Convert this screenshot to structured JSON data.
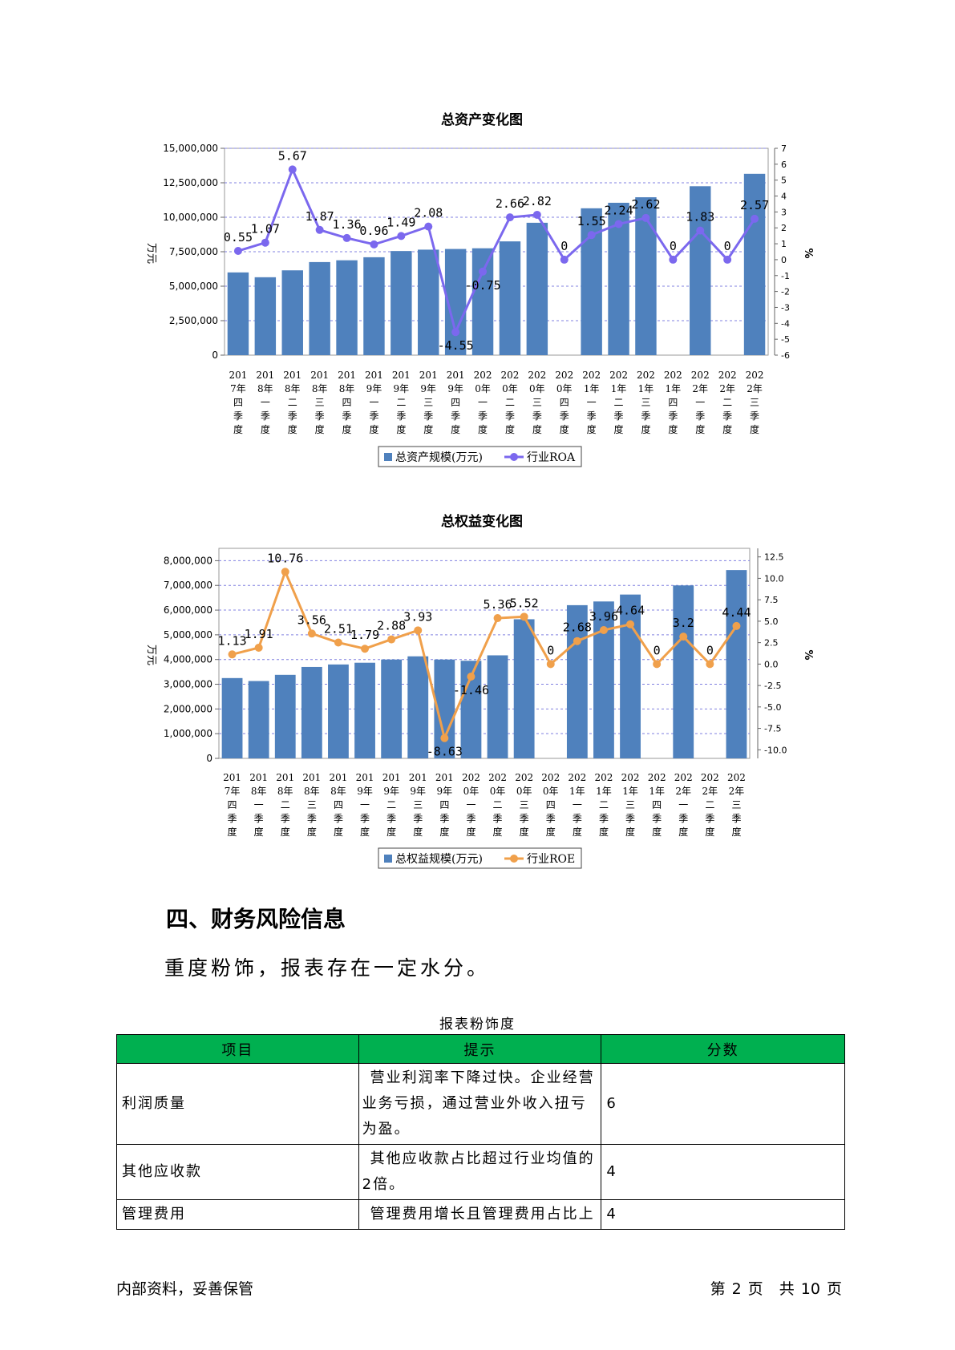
{
  "charts": {
    "assets": {
      "title": "总资产变化图",
      "ylabel_left": "万元",
      "ylabel_right": "%",
      "left_ticks": [
        "0",
        "2,500,000",
        "5,000,000",
        "7,500,000",
        "10,000,000",
        "12,500,000",
        "15,000,000"
      ],
      "right_ticks": [
        "-6",
        "-5",
        "-4",
        "-3",
        "-2",
        "-1",
        "0",
        "1",
        "2",
        "3",
        "4",
        "5",
        "6",
        "7"
      ],
      "legend_bar": "总资产规模(万元)",
      "legend_line": "行业ROA"
    },
    "equity": {
      "title": "总权益变化图",
      "ylabel_left": "万元",
      "ylabel_right": "%",
      "left_ticks": [
        "0",
        "1,000,000",
        "2,000,000",
        "3,000,000",
        "4,000,000",
        "5,000,000",
        "6,000,000",
        "7,000,000",
        "8,000,000"
      ],
      "right_ticks": [
        "-10.0",
        "-7.5",
        "-5.0",
        "-2.5",
        "0.0",
        "2.5",
        "5.0",
        "7.5",
        "10.0",
        "12.5"
      ],
      "legend_bar": "总权益规模(万元)",
      "legend_line": "行业ROE"
    }
  },
  "chart_data": [
    {
      "type": "bar",
      "title": "总资产变化图",
      "ylabel": "万元",
      "y2label": "%",
      "ylim": [
        0,
        15000000
      ],
      "y2lim": [
        -6,
        7
      ],
      "grid": true,
      "legend": "bottom",
      "categories": [
        [
          "201",
          "7年",
          "四",
          "季",
          "度"
        ],
        [
          "201",
          "8年",
          "一",
          "季",
          "度"
        ],
        [
          "201",
          "8年",
          "二",
          "季",
          "度"
        ],
        [
          "201",
          "8年",
          "三",
          "季",
          "度"
        ],
        [
          "201",
          "8年",
          "四",
          "季",
          "度"
        ],
        [
          "201",
          "9年",
          "一",
          "季",
          "度"
        ],
        [
          "201",
          "9年",
          "二",
          "季",
          "度"
        ],
        [
          "201",
          "9年",
          "三",
          "季",
          "度"
        ],
        [
          "201",
          "9年",
          "四",
          "季",
          "度"
        ],
        [
          "202",
          "0年",
          "一",
          "季",
          "度"
        ],
        [
          "202",
          "0年",
          "二",
          "季",
          "度"
        ],
        [
          "202",
          "0年",
          "三",
          "季",
          "度"
        ],
        [
          "202",
          "0年",
          "四",
          "季",
          "度"
        ],
        [
          "202",
          "1年",
          "一",
          "季",
          "度"
        ],
        [
          "202",
          "1年",
          "二",
          "季",
          "度"
        ],
        [
          "202",
          "1年",
          "三",
          "季",
          "度"
        ],
        [
          "202",
          "1年",
          "四",
          "季",
          "度"
        ],
        [
          "202",
          "2年",
          "一",
          "季",
          "度"
        ],
        [
          "202",
          "2年",
          "二",
          "季",
          "度"
        ],
        [
          "202",
          "2年",
          "三",
          "季",
          "度"
        ]
      ],
      "series": [
        {
          "name": "总资产规模(万元)",
          "kind": "bar",
          "axis": "left",
          "color": "#4f81bd",
          "values": [
            6000000,
            5650000,
            6150000,
            6750000,
            6880000,
            7100000,
            7550000,
            7650000,
            7700000,
            7750000,
            8250000,
            9600000,
            0,
            10650000,
            11050000,
            11450000,
            0,
            12250000,
            0,
            13150000
          ]
        },
        {
          "name": "行业ROA",
          "kind": "line",
          "axis": "right",
          "color": "#7b68ee",
          "values": [
            0.55,
            1.07,
            5.67,
            1.87,
            1.36,
            0.96,
            1.49,
            2.08,
            -4.55,
            -0.75,
            2.66,
            2.82,
            0,
            1.55,
            2.24,
            2.62,
            0,
            1.83,
            0,
            2.57
          ],
          "labels": [
            "0.55",
            "1.07",
            "5.67",
            "1.87",
            "1.36",
            "0.96",
            "1.49",
            "2.08",
            "-4.55",
            "-0.75",
            "2.66",
            "2.82",
            "0",
            "1.55",
            "2.24",
            "2.62",
            "0",
            "1.83",
            "0",
            "2.57"
          ]
        }
      ]
    },
    {
      "type": "bar",
      "title": "总权益变化图",
      "ylabel": "万元",
      "y2label": "%",
      "ylim": [
        0,
        8500000
      ],
      "y2lim": [
        -11,
        13.5
      ],
      "grid": true,
      "legend": "bottom",
      "categories": [
        [
          "201",
          "7年",
          "四",
          "季",
          "度"
        ],
        [
          "201",
          "8年",
          "一",
          "季",
          "度"
        ],
        [
          "201",
          "8年",
          "二",
          "季",
          "度"
        ],
        [
          "201",
          "8年",
          "三",
          "季",
          "度"
        ],
        [
          "201",
          "8年",
          "四",
          "季",
          "度"
        ],
        [
          "201",
          "9年",
          "一",
          "季",
          "度"
        ],
        [
          "201",
          "9年",
          "二",
          "季",
          "度"
        ],
        [
          "201",
          "9年",
          "三",
          "季",
          "度"
        ],
        [
          "201",
          "9年",
          "四",
          "季",
          "度"
        ],
        [
          "202",
          "0年",
          "一",
          "季",
          "度"
        ],
        [
          "202",
          "0年",
          "二",
          "季",
          "度"
        ],
        [
          "202",
          "0年",
          "三",
          "季",
          "度"
        ],
        [
          "202",
          "0年",
          "四",
          "季",
          "度"
        ],
        [
          "202",
          "1年",
          "一",
          "季",
          "度"
        ],
        [
          "202",
          "1年",
          "二",
          "季",
          "度"
        ],
        [
          "202",
          "1年",
          "三",
          "季",
          "度"
        ],
        [
          "202",
          "1年",
          "四",
          "季",
          "度"
        ],
        [
          "202",
          "2年",
          "一",
          "季",
          "度"
        ],
        [
          "202",
          "2年",
          "二",
          "季",
          "度"
        ],
        [
          "202",
          "2年",
          "三",
          "季",
          "度"
        ]
      ],
      "series": [
        {
          "name": "总权益规模(万元)",
          "kind": "bar",
          "axis": "left",
          "color": "#4f81bd",
          "values": [
            3250000,
            3130000,
            3380000,
            3700000,
            3800000,
            3870000,
            4000000,
            4130000,
            4000000,
            3950000,
            4170000,
            5630000,
            0,
            6200000,
            6350000,
            6630000,
            0,
            7000000,
            0,
            7620000
          ]
        },
        {
          "name": "行业ROE",
          "kind": "line",
          "axis": "right",
          "color": "#f0a04b",
          "values": [
            1.13,
            1.91,
            10.76,
            3.56,
            2.51,
            1.79,
            2.88,
            3.93,
            -8.63,
            -1.46,
            5.36,
            5.52,
            0,
            2.68,
            3.96,
            4.64,
            0,
            3.2,
            0,
            4.44
          ],
          "labels": [
            "1.13",
            "1.91",
            "10.76",
            "3.56",
            "2.51",
            "1.79",
            "2.88",
            "3.93",
            "-8.63",
            "-1.46",
            "5.36",
            "5.52",
            "0",
            "2.68",
            "3.96",
            "4.64",
            "0",
            "3.2",
            "0",
            "4.44"
          ]
        }
      ]
    }
  ],
  "section": {
    "title": "四、财务风险信息",
    "summary": "重度粉饰，报表存在一定水分。"
  },
  "table": {
    "caption": "报表粉饰度",
    "header_color": "#00b050",
    "headers": [
      "项目",
      "提示",
      "分数"
    ],
    "rows": [
      {
        "item": "利润质量",
        "hint": "营业利润率下降过快。企业经营业务亏损，通过营业外收入扭亏为盈。",
        "score": "6"
      },
      {
        "item": "其他应收款",
        "hint": "其他应收款占比超过行业均值的2倍。",
        "score": "4"
      },
      {
        "item": "管理费用",
        "hint": "管理费用增长且管理费用占比上",
        "score": "4"
      }
    ]
  },
  "footer": {
    "left": "内部资料，妥善保管",
    "page_label": "第",
    "page_number": "2",
    "page_unit": "页",
    "total_label": "共",
    "total_pages": "10",
    "total_unit": "页"
  }
}
